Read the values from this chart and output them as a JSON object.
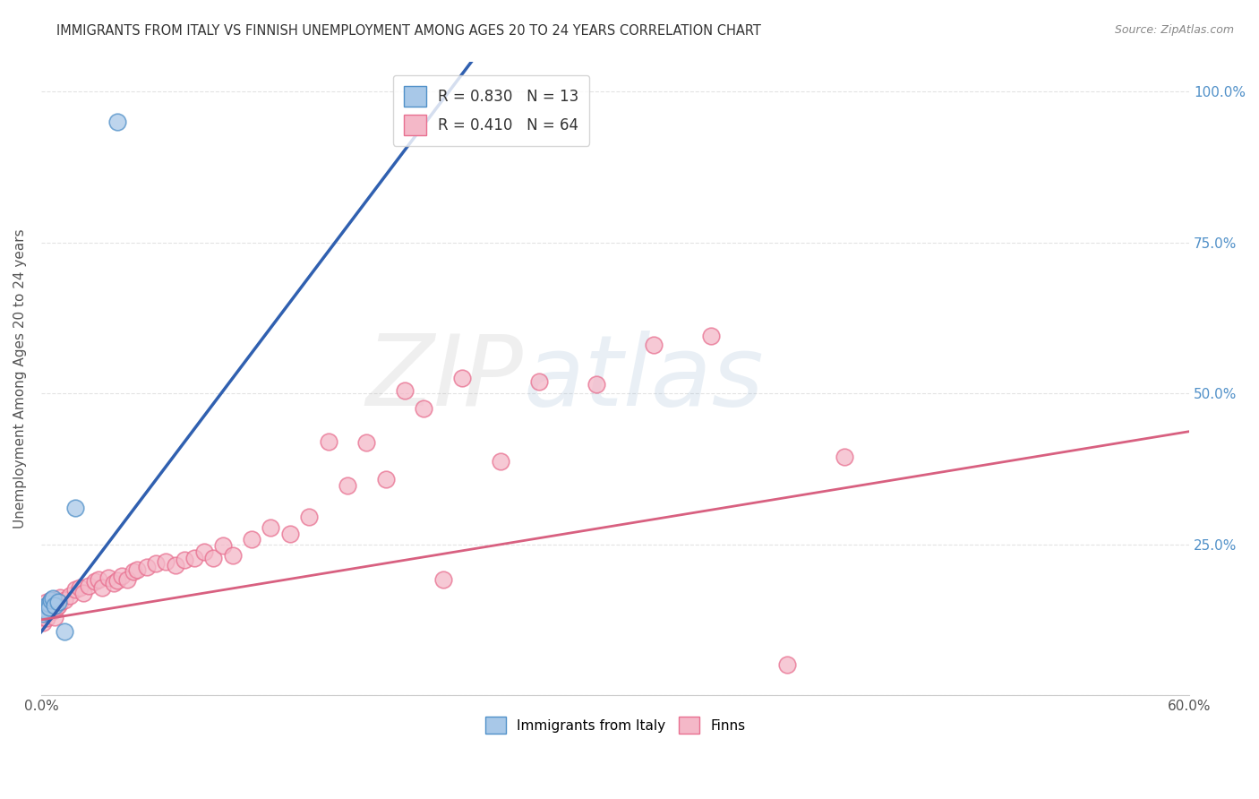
{
  "title": "IMMIGRANTS FROM ITALY VS FINNISH UNEMPLOYMENT AMONG AGES 20 TO 24 YEARS CORRELATION CHART",
  "source": "Source: ZipAtlas.com",
  "ylabel": "Unemployment Among Ages 20 to 24 years",
  "xlim": [
    0.0,
    0.6
  ],
  "ylim": [
    0.0,
    1.05
  ],
  "xtick_positions": [
    0.0,
    0.1,
    0.2,
    0.3,
    0.4,
    0.5,
    0.6
  ],
  "xticklabels": [
    "0.0%",
    "",
    "",
    "",
    "",
    "",
    "60.0%"
  ],
  "yticks_right": [
    0.0,
    0.25,
    0.5,
    0.75,
    1.0
  ],
  "ytick_right_labels": [
    "",
    "25.0%",
    "50.0%",
    "75.0%",
    "100.0%"
  ],
  "blue_R": "0.830",
  "blue_N": "13",
  "pink_R": "0.410",
  "pink_N": "64",
  "blue_fill_color": "#A8C8E8",
  "pink_fill_color": "#F4B8C8",
  "blue_edge_color": "#5090C8",
  "pink_edge_color": "#E87090",
  "blue_line_color": "#3060B0",
  "pink_line_color": "#D86080",
  "legend_label_blue": "Immigrants from Italy",
  "legend_label_pink": "Finns",
  "blue_scatter_x": [
    0.001,
    0.002,
    0.003,
    0.003,
    0.004,
    0.004,
    0.005,
    0.006,
    0.007,
    0.009,
    0.012,
    0.018,
    0.04
  ],
  "blue_scatter_y": [
    0.135,
    0.142,
    0.148,
    0.138,
    0.152,
    0.145,
    0.158,
    0.16,
    0.148,
    0.155,
    0.105,
    0.31,
    0.95
  ],
  "pink_scatter_x": [
    0.001,
    0.001,
    0.002,
    0.002,
    0.003,
    0.003,
    0.003,
    0.004,
    0.004,
    0.005,
    0.005,
    0.006,
    0.006,
    0.007,
    0.007,
    0.008,
    0.009,
    0.01,
    0.01,
    0.012,
    0.015,
    0.018,
    0.02,
    0.022,
    0.025,
    0.028,
    0.03,
    0.032,
    0.035,
    0.038,
    0.04,
    0.042,
    0.045,
    0.048,
    0.05,
    0.055,
    0.06,
    0.065,
    0.07,
    0.075,
    0.08,
    0.085,
    0.09,
    0.095,
    0.1,
    0.11,
    0.12,
    0.13,
    0.14,
    0.15,
    0.16,
    0.17,
    0.18,
    0.19,
    0.2,
    0.21,
    0.22,
    0.24,
    0.26,
    0.29,
    0.32,
    0.35,
    0.39,
    0.42
  ],
  "pink_scatter_y": [
    0.12,
    0.13,
    0.135,
    0.145,
    0.128,
    0.14,
    0.155,
    0.138,
    0.148,
    0.145,
    0.158,
    0.14,
    0.152,
    0.158,
    0.13,
    0.145,
    0.148,
    0.155,
    0.162,
    0.158,
    0.165,
    0.175,
    0.178,
    0.17,
    0.182,
    0.188,
    0.192,
    0.178,
    0.195,
    0.185,
    0.19,
    0.198,
    0.192,
    0.205,
    0.208,
    0.212,
    0.218,
    0.222,
    0.215,
    0.225,
    0.228,
    0.238,
    0.228,
    0.248,
    0.232,
    0.258,
    0.278,
    0.268,
    0.295,
    0.42,
    0.348,
    0.418,
    0.358,
    0.505,
    0.475,
    0.192,
    0.525,
    0.388,
    0.52,
    0.515,
    0.58,
    0.595,
    0.05,
    0.395
  ],
  "blue_line_x0": -0.005,
  "blue_line_x1": 0.225,
  "blue_line_y_intercept": 0.105,
  "blue_line_slope": 4.2,
  "pink_line_x0": 0.0,
  "pink_line_x1": 0.6,
  "pink_line_y_intercept": 0.125,
  "pink_line_slope": 0.52,
  "background_color": "#FFFFFF",
  "grid_color": "#DDDDDD",
  "watermark_zip": "ZIP",
  "watermark_atlas": "atlas",
  "watermark_alpha": 0.18,
  "watermark_fontsize": 80
}
